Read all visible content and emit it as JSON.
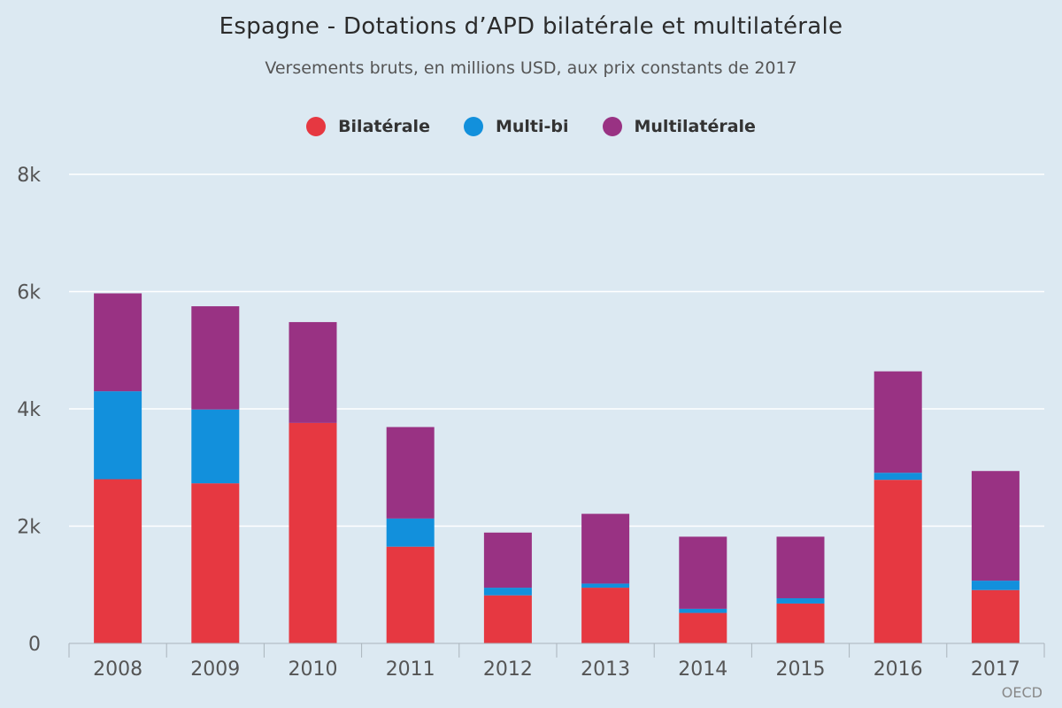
{
  "chart_data": {
    "type": "bar",
    "stacked": true,
    "title": "Espagne - Dotations d’APD bilatérale et multilatérale",
    "subtitle": "Versements bruts, en millions USD, aux prix constants de 2017",
    "categories": [
      "2008",
      "2009",
      "2010",
      "2011",
      "2012",
      "2013",
      "2014",
      "2015",
      "2016",
      "2017"
    ],
    "series": [
      {
        "name": "Bilatérale",
        "color": "#e63841",
        "values": [
          2800,
          2730,
          3760,
          1650,
          820,
          950,
          520,
          680,
          2790,
          910
        ]
      },
      {
        "name": "Multi-bi",
        "color": "#1290dc",
        "values": [
          1500,
          1260,
          0,
          480,
          130,
          70,
          70,
          90,
          120,
          160
        ]
      },
      {
        "name": "Multilatérale",
        "color": "#993283",
        "values": [
          1670,
          1760,
          1720,
          1560,
          940,
          1190,
          1230,
          1050,
          1730,
          1870
        ]
      }
    ],
    "ylim": [
      0,
      8000
    ],
    "yticks": [
      0,
      2000,
      4000,
      6000,
      8000
    ],
    "ytick_labels": [
      "0",
      "2k",
      "4k",
      "6k",
      "8k"
    ],
    "grid": true,
    "legend": "top-center",
    "source": "OECD"
  }
}
